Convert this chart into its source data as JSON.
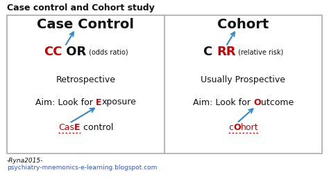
{
  "title": "Case control and Cohort study",
  "title_fontsize": 9,
  "title_color": "#111111",
  "bg_color": "#ffffff",
  "box_bg": "#ffffff",
  "box_edge": "#aaaaaa",
  "left_header": "Case Control",
  "right_header": "Cohort",
  "header_fontsize": 14,
  "left_mnemonic_red": "CC",
  "left_mnemonic_black": " OR",
  "left_mnemonic_small": " (odds ratio)",
  "right_mnemonic_black_pre": "C ",
  "right_mnemonic_red": "RR",
  "right_mnemonic_small": " (relative risk)",
  "left_line2": "Retrospective",
  "right_line2": "Usually Prospective",
  "left_line3_pre": "Aim: Look for ",
  "left_line3_red": "E",
  "left_line3_rest": "xposure",
  "right_line3_pre": "Aim: Look for ",
  "right_line3_red": "O",
  "right_line3_rest": "utcome",
  "left_mnem2_a": "Cas",
  "left_mnem2_b": "E",
  "left_mnem2_c": " control",
  "right_mnem2_a": "c",
  "right_mnem2_b": "O",
  "right_mnem2_c": "hort",
  "footer1": "-Ryna2015-",
  "footer2": "psychiatry-mnemonics-e-learning.blogspot.com",
  "text_color": "#111111",
  "red_color": "#cc0000",
  "arrow_color": "#3388cc",
  "body_fontsize": 9,
  "mnem_fontsize": 9,
  "big_fontsize": 13,
  "small_fontsize": 7
}
